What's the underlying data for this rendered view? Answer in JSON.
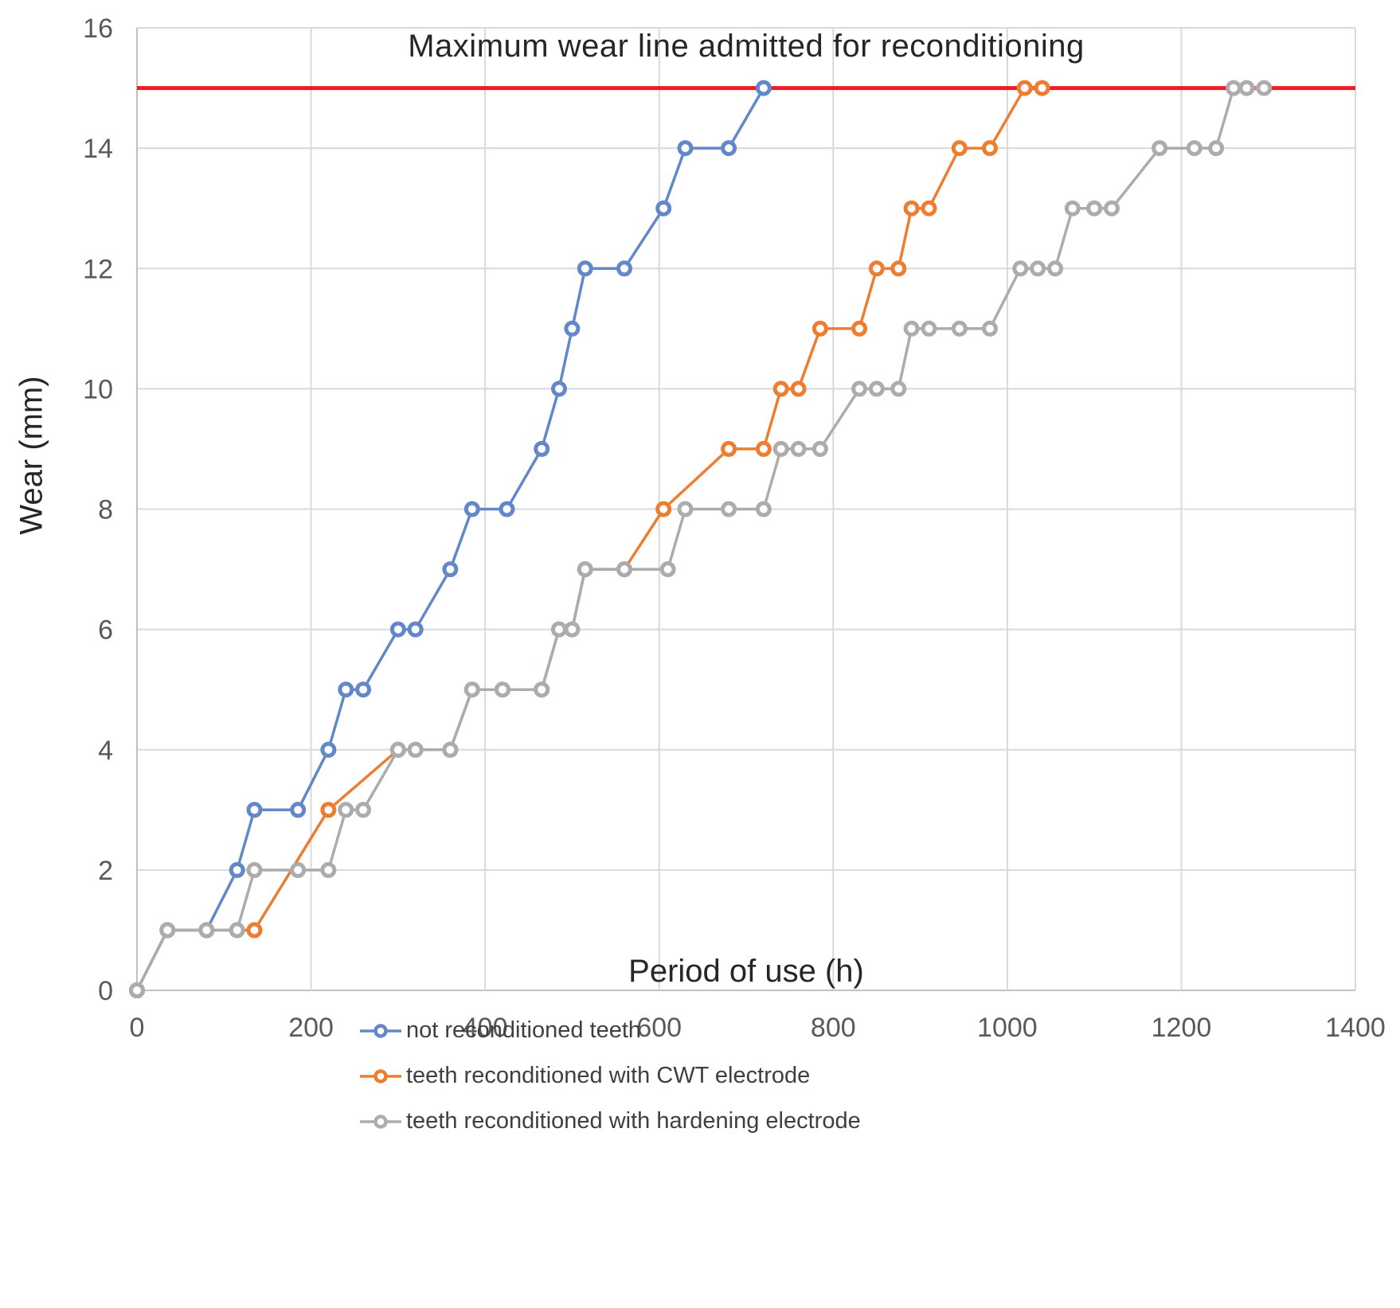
{
  "figure": {
    "title": "Maximum wear line admitted for reconditioning",
    "xlabel": "Period of use (h)",
    "ylabel": "Wear (mm)"
  },
  "colors": {
    "background": "#ffffff",
    "grid": "#d9d9d9",
    "axis_line": "#c0c0c0",
    "tick_text": "#595959",
    "title_text": "#262626",
    "legend_text": "#3f3f3f",
    "reference_line": "#ee1c25"
  },
  "chart_data": {
    "type": "line",
    "title": "Maximum wear line admitted for reconditioning",
    "xlabel": "Period of use (h)",
    "ylabel": "Wear (mm)",
    "xlim": [
      0,
      1400
    ],
    "ylim": [
      0,
      16
    ],
    "x_ticks": [
      0,
      200,
      400,
      600,
      800,
      1000,
      1200,
      1400
    ],
    "y_ticks": [
      0,
      2,
      4,
      6,
      8,
      10,
      12,
      14,
      16
    ],
    "grid": true,
    "legend_position": "bottom-left",
    "reference_line": {
      "y": 15,
      "color": "#ee1c25",
      "label": "Maximum wear line admitted for reconditioning"
    },
    "series": [
      {
        "name": "not reconditioned teeth",
        "color": "#6288c9",
        "points": [
          [
            0,
            0
          ],
          [
            35,
            1
          ],
          [
            80,
            1
          ],
          [
            115,
            2
          ],
          [
            135,
            3
          ],
          [
            185,
            3
          ],
          [
            220,
            4
          ],
          [
            240,
            5
          ],
          [
            260,
            5
          ],
          [
            300,
            6
          ],
          [
            320,
            6
          ],
          [
            360,
            7
          ],
          [
            385,
            8
          ],
          [
            425,
            8
          ],
          [
            465,
            9
          ],
          [
            485,
            10
          ],
          [
            500,
            11
          ],
          [
            515,
            12
          ],
          [
            560,
            12
          ],
          [
            605,
            13
          ],
          [
            630,
            14
          ],
          [
            680,
            14
          ],
          [
            720,
            15
          ]
        ]
      },
      {
        "name": "teeth reconditioned with CWT electrode",
        "color": "#ed7d31",
        "points": [
          [
            0,
            0
          ],
          [
            35,
            1
          ],
          [
            80,
            1
          ],
          [
            115,
            1
          ],
          [
            135,
            1
          ],
          [
            220,
            3
          ],
          [
            300,
            4
          ],
          [
            320,
            4
          ],
          [
            360,
            4
          ],
          [
            385,
            5
          ],
          [
            420,
            5
          ],
          [
            465,
            5
          ],
          [
            485,
            6
          ],
          [
            500,
            6
          ],
          [
            515,
            7
          ],
          [
            560,
            7
          ],
          [
            605,
            8
          ],
          [
            680,
            9
          ],
          [
            720,
            9
          ],
          [
            740,
            10
          ],
          [
            760,
            10
          ],
          [
            785,
            11
          ],
          [
            830,
            11
          ],
          [
            850,
            12
          ],
          [
            875,
            12
          ],
          [
            890,
            13
          ],
          [
            910,
            13
          ],
          [
            945,
            14
          ],
          [
            980,
            14
          ],
          [
            1020,
            15
          ],
          [
            1040,
            15
          ]
        ]
      },
      {
        "name": "teeth reconditioned with hardening electrode",
        "color": "#acacac",
        "points": [
          [
            0,
            0
          ],
          [
            35,
            1
          ],
          [
            80,
            1
          ],
          [
            115,
            1
          ],
          [
            135,
            2
          ],
          [
            185,
            2
          ],
          [
            220,
            2
          ],
          [
            240,
            3
          ],
          [
            260,
            3
          ],
          [
            300,
            4
          ],
          [
            320,
            4
          ],
          [
            360,
            4
          ],
          [
            385,
            5
          ],
          [
            420,
            5
          ],
          [
            465,
            5
          ],
          [
            485,
            6
          ],
          [
            500,
            6
          ],
          [
            515,
            7
          ],
          [
            560,
            7
          ],
          [
            610,
            7
          ],
          [
            630,
            8
          ],
          [
            680,
            8
          ],
          [
            720,
            8
          ],
          [
            740,
            9
          ],
          [
            760,
            9
          ],
          [
            785,
            9
          ],
          [
            830,
            10
          ],
          [
            850,
            10
          ],
          [
            875,
            10
          ],
          [
            890,
            11
          ],
          [
            910,
            11
          ],
          [
            945,
            11
          ],
          [
            980,
            11
          ],
          [
            1015,
            12
          ],
          [
            1035,
            12
          ],
          [
            1055,
            12
          ],
          [
            1075,
            13
          ],
          [
            1100,
            13
          ],
          [
            1120,
            13
          ],
          [
            1175,
            14
          ],
          [
            1215,
            14
          ],
          [
            1240,
            14
          ],
          [
            1260,
            15
          ],
          [
            1275,
            15
          ],
          [
            1295,
            15
          ]
        ]
      }
    ]
  }
}
